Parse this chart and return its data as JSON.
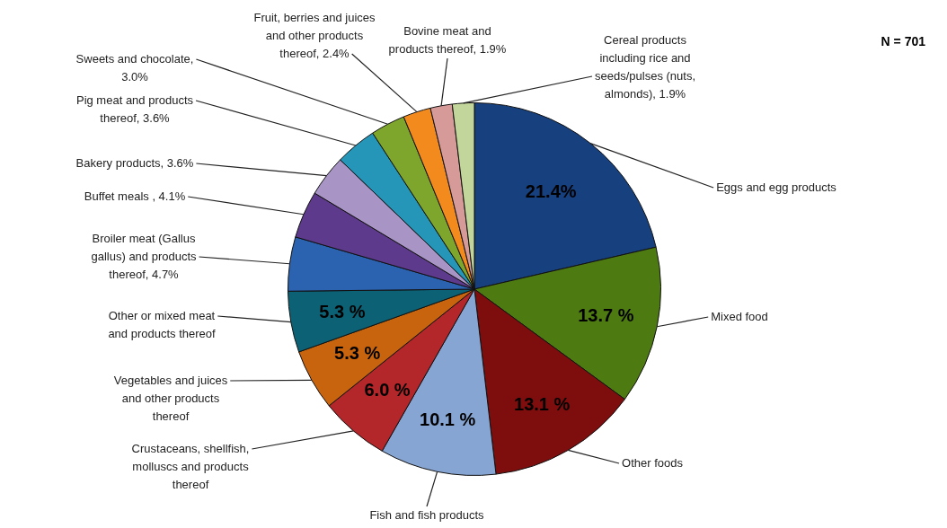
{
  "chart_data": {
    "type": "pie",
    "categories": [
      "Eggs and egg products",
      "Mixed food",
      "Other foods",
      "Fish and fish products",
      "Crustaceans, shellfish, molluscs and products thereof",
      "Vegetables and juices and other products thereof",
      "Other or mixed meat and products thereof",
      "Broiler meat (Gallus gallus) and products thereof, 4.7%",
      "Buffet meals , 4.1%",
      "Bakery products, 3.6%",
      "Pig meat and products thereof, 3.6%",
      "Sweets and chocolate, 3.0%",
      "Fruit, berries and juices and other products thereof, 2.4%",
      "Bovine meat and products thereof, 1.9%",
      "Cereal products including rice and seeds/pulses (nuts, almonds), 1.9%"
    ],
    "values": [
      21.4,
      13.7,
      13.1,
      10.1,
      6.0,
      5.3,
      5.3,
      4.7,
      4.1,
      3.6,
      3.6,
      3.0,
      2.4,
      1.9,
      1.9
    ],
    "value_labels": [
      "21.4%",
      "13.7 %",
      "13.1 %",
      "10.1 %",
      "6.0 %",
      "5.3 %",
      "5.3 %",
      null,
      null,
      null,
      null,
      null,
      null,
      null,
      null
    ],
    "colors": [
      "#17407f",
      "#4e7a12",
      "#7e0d0d",
      "#86a5d3",
      "#b3262a",
      "#c8640d",
      "#0d6175",
      "#2c63b0",
      "#5e3a8c",
      "#a895c6",
      "#2596b8",
      "#7ea52c",
      "#f38a1d",
      "#d69a99",
      "#c2d59a"
    ],
    "annotations": [
      "N = 701"
    ],
    "legend": false
  }
}
